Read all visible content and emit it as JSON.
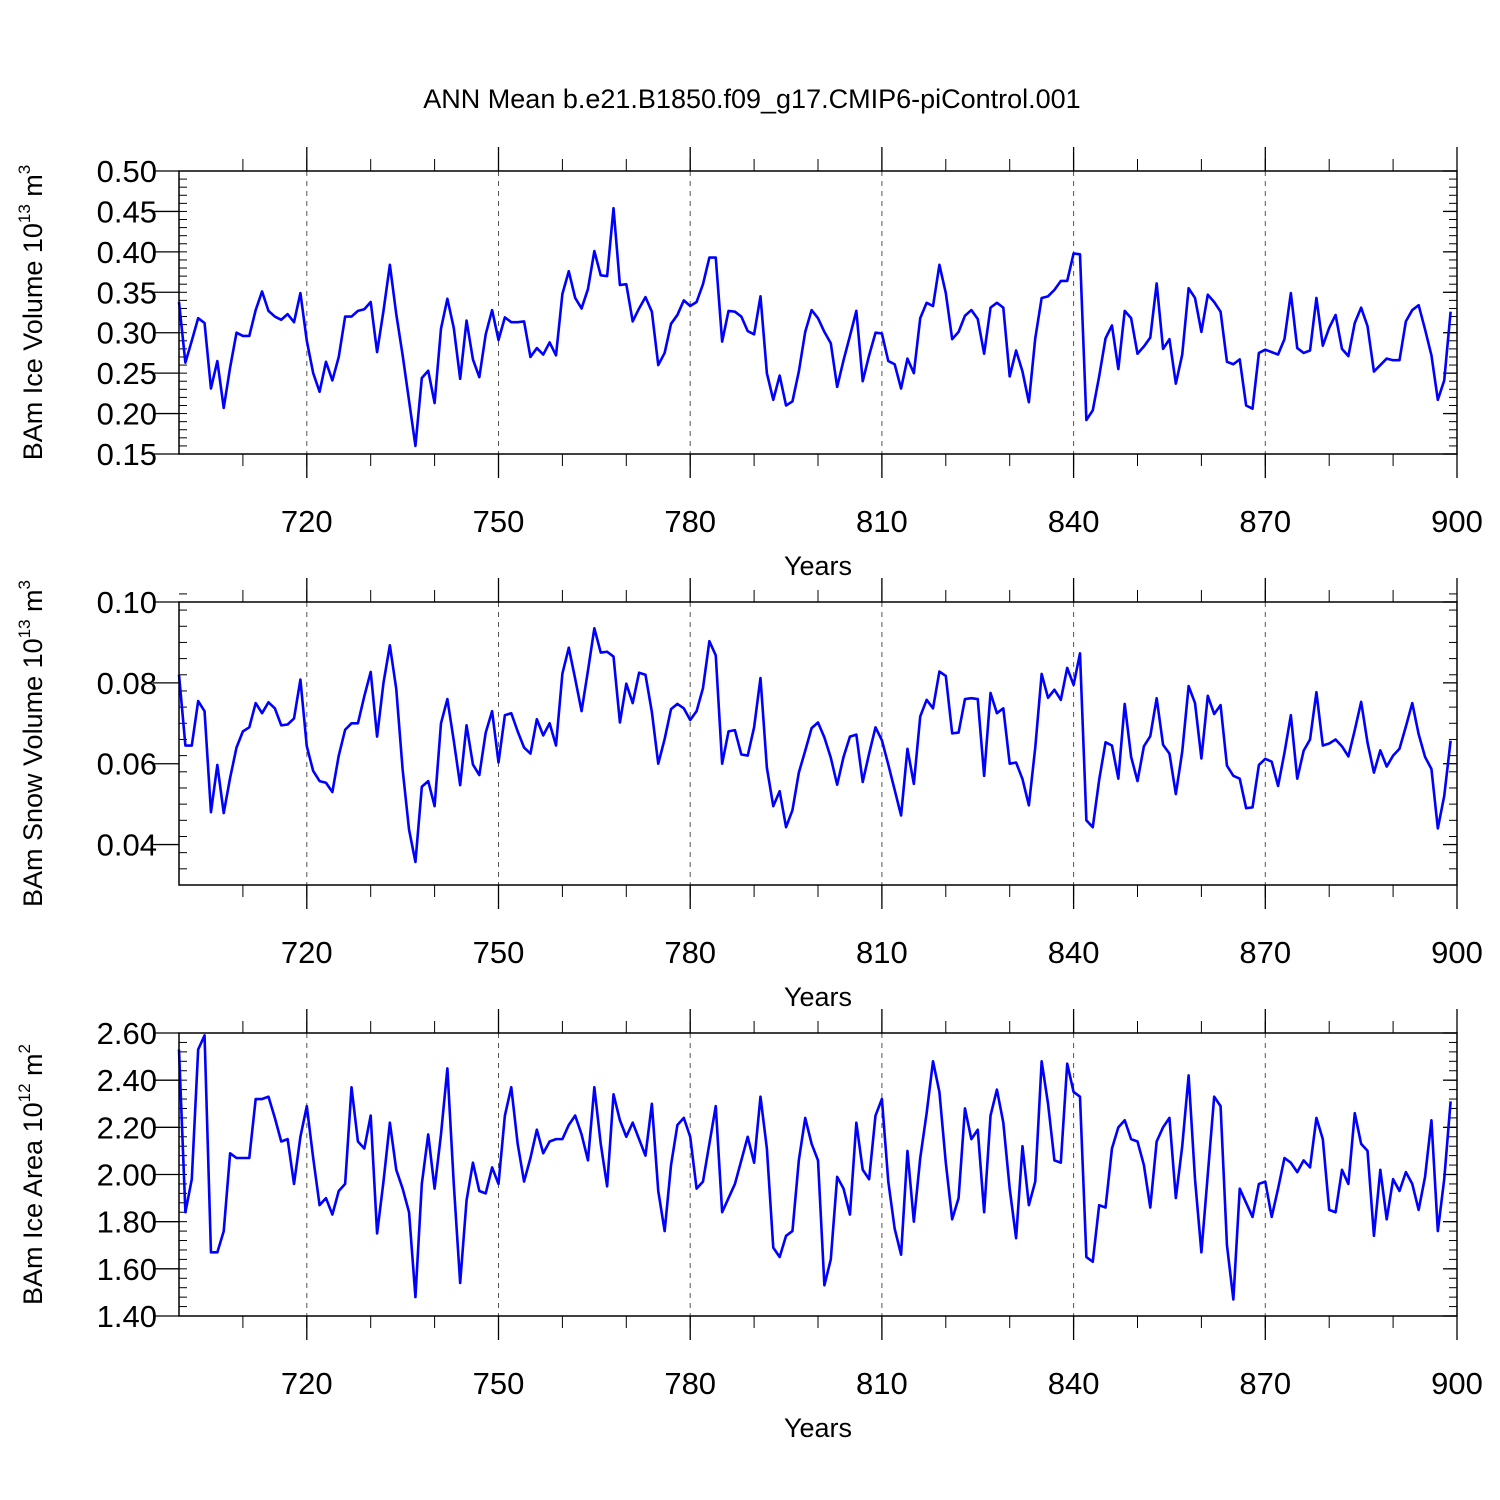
{
  "title": "ANN Mean b.e21.B1850.f09_g17.CMIP6-piControl.001",
  "colors": {
    "line": "#0000ff",
    "axis": "#000000",
    "grid": "#555555"
  },
  "chart_data": [
    {
      "type": "line",
      "ylabel_main": "BAm Ice Volume 10",
      "ylabel_exp": "13",
      "ylabel_unit": " m",
      "ylabel_unit_exp": "3",
      "xlabel": "Years",
      "xlim": [
        700,
        900
      ],
      "ylim": [
        0.15,
        0.5
      ],
      "xticks": [
        720,
        750,
        780,
        810,
        840,
        870,
        900
      ],
      "xtick_labels": [
        "720",
        "750",
        "780",
        "810",
        "840",
        "870",
        "900"
      ],
      "yticks": [
        0.15,
        0.2,
        0.25,
        0.3,
        0.35,
        0.4,
        0.45,
        0.5
      ],
      "ytick_labels": [
        "0.15",
        "0.20",
        "0.25",
        "0.30",
        "0.35",
        "0.40",
        "0.45",
        "0.50"
      ],
      "grid": "x-dashed",
      "series": [
        {
          "x_start": 700,
          "values": [
            0.338,
            0.263,
            0.29,
            0.318,
            0.312,
            0.231,
            0.265,
            0.207,
            0.257,
            0.3,
            0.296,
            0.296,
            0.328,
            0.351,
            0.327,
            0.32,
            0.316,
            0.323,
            0.313,
            0.349,
            0.29,
            0.25,
            0.227,
            0.264,
            0.241,
            0.27,
            0.32,
            0.32,
            0.327,
            0.329,
            0.338,
            0.276,
            0.327,
            0.384,
            0.323,
            0.272,
            0.216,
            0.16,
            0.244,
            0.253,
            0.213,
            0.305,
            0.342,
            0.306,
            0.243,
            0.315,
            0.267,
            0.245,
            0.298,
            0.328,
            0.291,
            0.319,
            0.313,
            0.313,
            0.314,
            0.27,
            0.281,
            0.273,
            0.288,
            0.272,
            0.348,
            0.376,
            0.343,
            0.33,
            0.354,
            0.401,
            0.371,
            0.37,
            0.454,
            0.359,
            0.36,
            0.314,
            0.33,
            0.344,
            0.326,
            0.26,
            0.275,
            0.311,
            0.322,
            0.34,
            0.333,
            0.338,
            0.36,
            0.393,
            0.393,
            0.289,
            0.327,
            0.326,
            0.32,
            0.302,
            0.298,
            0.345,
            0.25,
            0.217,
            0.247,
            0.21,
            0.215,
            0.252,
            0.301,
            0.328,
            0.318,
            0.301,
            0.287,
            0.233,
            0.266,
            0.296,
            0.327,
            0.24,
            0.272,
            0.3,
            0.299,
            0.265,
            0.261,
            0.231,
            0.268,
            0.25,
            0.318,
            0.337,
            0.333,
            0.384,
            0.349,
            0.292,
            0.301,
            0.321,
            0.328,
            0.317,
            0.274,
            0.331,
            0.337,
            0.331,
            0.246,
            0.278,
            0.252,
            0.214,
            0.293,
            0.343,
            0.345,
            0.353,
            0.364,
            0.364,
            0.398,
            0.397,
            0.192,
            0.204,
            0.246,
            0.293,
            0.309,
            0.255,
            0.327,
            0.318,
            0.274,
            0.283,
            0.294,
            0.361,
            0.28,
            0.292,
            0.237,
            0.273,
            0.355,
            0.343,
            0.301,
            0.347,
            0.338,
            0.326,
            0.264,
            0.261,
            0.267,
            0.21,
            0.206,
            0.275,
            0.279,
            0.276,
            0.273,
            0.292,
            0.349,
            0.281,
            0.275,
            0.278,
            0.343,
            0.284,
            0.306,
            0.322,
            0.28,
            0.271,
            0.312,
            0.331,
            0.308,
            0.252,
            0.26,
            0.268,
            0.266,
            0.266,
            0.314,
            0.328,
            0.334,
            0.304,
            0.272,
            0.217,
            0.241,
            0.326
          ]
        }
      ]
    },
    {
      "type": "line",
      "ylabel_main": "BAm Snow Volume 10",
      "ylabel_exp": "13",
      "ylabel_unit": " m",
      "ylabel_unit_exp": "3",
      "xlabel": "Years",
      "xlim": [
        700,
        900
      ],
      "ylim": [
        0.03,
        0.1
      ],
      "xticks": [
        720,
        750,
        780,
        810,
        840,
        870,
        900
      ],
      "xtick_labels": [
        "720",
        "750",
        "780",
        "810",
        "840",
        "870",
        "900"
      ],
      "yticks": [
        0.04,
        0.06,
        0.08,
        0.1
      ],
      "ytick_labels": [
        "0.04",
        "0.06",
        "0.08",
        "0.10"
      ],
      "grid": "x-dashed",
      "series": [
        {
          "x_start": 700,
          "values": [
            0.082,
            0.0645,
            0.0645,
            0.0755,
            0.073,
            0.048,
            0.0597,
            0.0478,
            0.0565,
            0.064,
            0.068,
            0.069,
            0.075,
            0.0725,
            0.0752,
            0.0737,
            0.0695,
            0.0697,
            0.0712,
            0.0808,
            0.0643,
            0.0582,
            0.0557,
            0.0553,
            0.053,
            0.062,
            0.0684,
            0.07,
            0.07,
            0.0767,
            0.0827,
            0.0667,
            0.08,
            0.0893,
            0.0785,
            0.0585,
            0.0437,
            0.0357,
            0.0543,
            0.0557,
            0.0495,
            0.07,
            0.076,
            0.0657,
            0.0547,
            0.0695,
            0.0598,
            0.0572,
            0.0677,
            0.073,
            0.0603,
            0.072,
            0.0725,
            0.068,
            0.064,
            0.0625,
            0.071,
            0.067,
            0.07,
            0.0645,
            0.0823,
            0.0887,
            0.081,
            0.073,
            0.083,
            0.0935,
            0.0875,
            0.0877,
            0.0865,
            0.0702,
            0.0798,
            0.075,
            0.0825,
            0.082,
            0.0728,
            0.06,
            0.0661,
            0.0735,
            0.0748,
            0.0737,
            0.0708,
            0.073,
            0.0787,
            0.0903,
            0.0868,
            0.06,
            0.068,
            0.0683,
            0.0623,
            0.062,
            0.069,
            0.0812,
            0.059,
            0.0495,
            0.0532,
            0.0443,
            0.0485,
            0.0578,
            0.0632,
            0.0688,
            0.0702,
            0.0665,
            0.0615,
            0.0548,
            0.0617,
            0.0667,
            0.0672,
            0.0555,
            0.0625,
            0.069,
            0.0658,
            0.0598,
            0.0535,
            0.0472,
            0.0637,
            0.055,
            0.0717,
            0.0758,
            0.0737,
            0.0828,
            0.0817,
            0.0675,
            0.0677,
            0.076,
            0.0762,
            0.076,
            0.057,
            0.0775,
            0.0725,
            0.0737,
            0.06,
            0.0603,
            0.0562,
            0.0497,
            0.064,
            0.0822,
            0.0763,
            0.0783,
            0.0758,
            0.0837,
            0.0795,
            0.0873,
            0.046,
            0.0443,
            0.056,
            0.0653,
            0.0645,
            0.0563,
            0.0748,
            0.0617,
            0.0557,
            0.0643,
            0.0668,
            0.0762,
            0.0647,
            0.0625,
            0.0525,
            0.063,
            0.0792,
            0.075,
            0.0613,
            0.0768,
            0.0723,
            0.0745,
            0.0595,
            0.057,
            0.0563,
            0.049,
            0.0492,
            0.0597,
            0.0612,
            0.0605,
            0.0545,
            0.0627,
            0.072,
            0.0563,
            0.0632,
            0.066,
            0.0777,
            0.0645,
            0.065,
            0.066,
            0.0643,
            0.0618,
            0.0683,
            0.0753,
            0.0652,
            0.0578,
            0.0633,
            0.0593,
            0.062,
            0.0637,
            0.0692,
            0.075,
            0.0673,
            0.0617,
            0.0587,
            0.044,
            0.052,
            0.0657
          ]
        }
      ]
    },
    {
      "type": "line",
      "ylabel_main": "BAm Ice Area 10",
      "ylabel_exp": "12",
      "ylabel_unit": " m",
      "ylabel_unit_exp": "2",
      "xlabel": "Years",
      "xlim": [
        700,
        900
      ],
      "ylim": [
        1.4,
        2.6
      ],
      "xticks": [
        720,
        750,
        780,
        810,
        840,
        870,
        900
      ],
      "xtick_labels": [
        "720",
        "750",
        "780",
        "810",
        "840",
        "870",
        "900"
      ],
      "yticks": [
        1.4,
        1.6,
        1.8,
        2.0,
        2.2,
        2.4,
        2.6
      ],
      "ytick_labels": [
        "1.40",
        "1.60",
        "1.80",
        "2.00",
        "2.20",
        "2.40",
        "2.60"
      ],
      "grid": "x-dashed",
      "series": [
        {
          "x_start": 700,
          "values": [
            2.53,
            1.84,
            1.98,
            2.53,
            2.59,
            1.67,
            1.67,
            1.76,
            2.09,
            2.07,
            2.07,
            2.07,
            2.32,
            2.32,
            2.33,
            2.24,
            2.14,
            2.15,
            1.96,
            2.16,
            2.29,
            2.07,
            1.87,
            1.9,
            1.83,
            1.93,
            1.96,
            2.37,
            2.14,
            2.11,
            2.25,
            1.75,
            1.97,
            2.22,
            2.02,
            1.94,
            1.84,
            1.48,
            1.96,
            2.17,
            1.94,
            2.17,
            2.45,
            1.96,
            1.54,
            1.89,
            2.05,
            1.93,
            1.92,
            2.03,
            1.96,
            2.25,
            2.37,
            2.13,
            1.97,
            2.07,
            2.19,
            2.09,
            2.14,
            2.15,
            2.15,
            2.21,
            2.25,
            2.17,
            2.06,
            2.37,
            2.13,
            1.95,
            2.34,
            2.23,
            2.16,
            2.22,
            2.15,
            2.08,
            2.3,
            1.93,
            1.76,
            2.04,
            2.21,
            2.24,
            2.16,
            1.94,
            1.97,
            2.13,
            2.29,
            1.84,
            1.9,
            1.96,
            2.06,
            2.16,
            2.05,
            2.33,
            2.11,
            1.69,
            1.65,
            1.74,
            1.76,
            2.06,
            2.24,
            2.13,
            2.06,
            1.53,
            1.64,
            1.99,
            1.94,
            1.83,
            2.22,
            2.02,
            1.98,
            2.25,
            2.32,
            1.97,
            1.77,
            1.66,
            2.1,
            1.8,
            2.07,
            2.26,
            2.48,
            2.35,
            2.05,
            1.81,
            1.9,
            2.28,
            2.15,
            2.19,
            1.84,
            2.25,
            2.36,
            2.22,
            1.94,
            1.73,
            2.12,
            1.87,
            1.97,
            2.48,
            2.3,
            2.06,
            2.05,
            2.47,
            2.35,
            2.33,
            1.65,
            1.63,
            1.87,
            1.86,
            2.11,
            2.2,
            2.23,
            2.15,
            2.14,
            2.04,
            1.86,
            2.14,
            2.2,
            2.24,
            1.9,
            2.12,
            2.42,
            1.98,
            1.67,
            2.0,
            2.33,
            2.29,
            1.7,
            1.47,
            1.94,
            1.88,
            1.82,
            1.96,
            1.97,
            1.82,
            1.94,
            2.07,
            2.05,
            2.01,
            2.06,
            2.03,
            2.24,
            2.15,
            1.85,
            1.84,
            2.02,
            1.96,
            2.26,
            2.13,
            2.1,
            1.74,
            2.02,
            1.81,
            1.98,
            1.93,
            2.01,
            1.96,
            1.85,
            1.99,
            2.23,
            1.76,
            1.98,
            2.31
          ]
        }
      ]
    }
  ]
}
